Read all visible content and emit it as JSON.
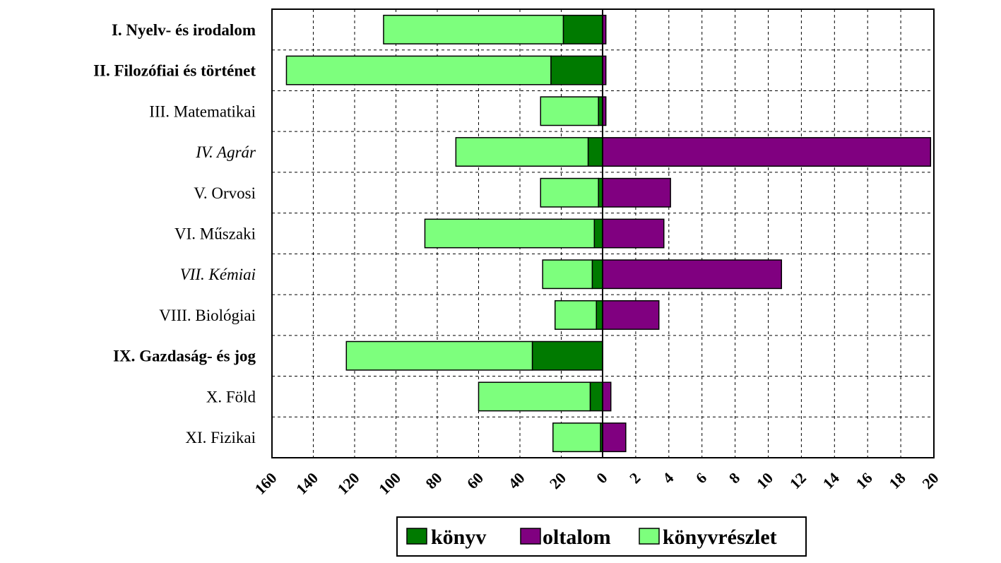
{
  "chart_data": {
    "type": "bar",
    "orientation": "horizontal",
    "layout": "butterfly",
    "categories": [
      {
        "label": "I. Nyelv- és irodalom",
        "style": "bold"
      },
      {
        "label": "II. Filozófiai és történet",
        "style": "bold"
      },
      {
        "label": "III. Matematikai",
        "style": "normal"
      },
      {
        "label": "IV. Agrár",
        "style": "italic"
      },
      {
        "label": "V. Orvosi",
        "style": "normal"
      },
      {
        "label": "VI. Műszaki",
        "style": "normal"
      },
      {
        "label": "VII. Kémiai",
        "style": "italic"
      },
      {
        "label": "VIII. Biológiai",
        "style": "normal"
      },
      {
        "label": "IX. Gazdaság- és jog",
        "style": "bold"
      },
      {
        "label": "X. Föld",
        "style": "normal"
      },
      {
        "label": "XI. Fizikai",
        "style": "normal"
      }
    ],
    "left_axis": {
      "ticks": [
        "160",
        "140",
        "120",
        "100",
        "80",
        "60",
        "40",
        "20",
        "0"
      ],
      "range": [
        160,
        0
      ]
    },
    "right_axis": {
      "ticks": [
        "2",
        "4",
        "6",
        "8",
        "10",
        "12",
        "14",
        "16",
        "18",
        "20"
      ],
      "range": [
        0,
        20
      ]
    },
    "series": [
      {
        "name": "könyv",
        "side": "left",
        "color": "#007a00",
        "values": [
          19,
          25,
          2,
          7,
          2,
          4,
          5,
          3,
          34,
          6,
          1
        ]
      },
      {
        "name": "könyvrészlet",
        "side": "left",
        "color": "#7dff7d",
        "values": [
          87,
          128,
          28,
          64,
          28,
          82,
          24,
          20,
          90,
          54,
          23
        ]
      },
      {
        "name": "oltalom",
        "side": "right",
        "color": "#800080",
        "values": [
          0.2,
          0.2,
          0.2,
          19.8,
          4.1,
          3.7,
          10.8,
          3.4,
          0,
          0.5,
          1.4
        ]
      }
    ],
    "legend": {
      "position": "bottom-right",
      "entries": [
        "könyv",
        "oltalom",
        "könyvrészlet"
      ]
    },
    "grid": true,
    "title": "",
    "xlabel": "",
    "ylabel": ""
  }
}
